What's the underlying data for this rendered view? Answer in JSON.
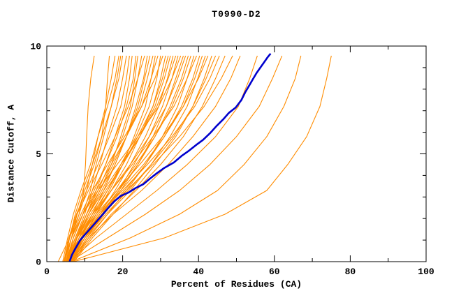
{
  "chart_data": {
    "type": "line",
    "title": "T0990-D2",
    "xlabel": "Percent of Residues (CA)",
    "ylabel": "Distance Cutoff, A",
    "xlim": [
      0,
      100
    ],
    "ylim": [
      0,
      10
    ],
    "grid": false,
    "legend": "none",
    "x_major_ticks": [
      0,
      20,
      40,
      60,
      80,
      100
    ],
    "x_minor_ticks": [
      10,
      30,
      50,
      70,
      90
    ],
    "y_major_ticks": [
      0,
      5,
      10
    ],
    "y_minor_ticks": [
      1,
      2,
      3,
      4,
      6,
      7,
      8,
      9
    ],
    "colors": {
      "model_lines": "#FF8C00",
      "highlight_line": "#0000CD",
      "axis": "#000000",
      "background": "#FFFFFF"
    },
    "series_y_levels": [
      0,
      1.1,
      2.2,
      3.3,
      4.5,
      5.8,
      7.2,
      8.5,
      9.55
    ],
    "model_series_x": [
      [
        3,
        6,
        8.5,
        9.7,
        10.2,
        10.5,
        10.9,
        11.6,
        12.5
      ],
      [
        4.5,
        6.5,
        8,
        10,
        12.5,
        14.5,
        15.5,
        16,
        16.5
      ],
      [
        5,
        6.5,
        8.5,
        10.5,
        12,
        13.5,
        15.5,
        17,
        18
      ],
      [
        4.2,
        5.5,
        7,
        9,
        11.5,
        13.5,
        16,
        18,
        19
      ],
      [
        5.5,
        7,
        9.5,
        11.5,
        13,
        15,
        17,
        18.5,
        19.5
      ],
      [
        4.8,
        6,
        7.5,
        9.5,
        12,
        14.5,
        17,
        19,
        20
      ],
      [
        5.2,
        7.5,
        10,
        12,
        14,
        16,
        18.5,
        20,
        21
      ],
      [
        4.5,
        5.8,
        7.8,
        10.5,
        13.5,
        16.5,
        19.5,
        21,
        21.8
      ],
      [
        6,
        8,
        10.5,
        13,
        15.5,
        18,
        20.5,
        21.8,
        22.5
      ],
      [
        5,
        7,
        9.5,
        12.5,
        15.5,
        18.5,
        21,
        22.8,
        23.5
      ],
      [
        6.2,
        8.5,
        11,
        14,
        17,
        19.5,
        22,
        23.2,
        24
      ],
      [
        5.4,
        7.8,
        10.5,
        13.5,
        16.5,
        20,
        22.5,
        24,
        25
      ],
      [
        4.6,
        6,
        8,
        11,
        14.5,
        18,
        21.5,
        24,
        25.8
      ],
      [
        6.5,
        9,
        12,
        15,
        18,
        21,
        23.5,
        25.5,
        26.5
      ],
      [
        5.6,
        8,
        11,
        14.5,
        18,
        21,
        24,
        25.8,
        27.2
      ],
      [
        5,
        7.5,
        10.5,
        14,
        17.5,
        21,
        24.5,
        26.5,
        28
      ],
      [
        6.8,
        9.5,
        13,
        16.5,
        20,
        23,
        26,
        27.5,
        28.6
      ],
      [
        5.2,
        7,
        9.5,
        13,
        17,
        21,
        25,
        27.5,
        29.3
      ],
      [
        6,
        9,
        12.5,
        16,
        19.5,
        23.5,
        27,
        29,
        30
      ],
      [
        4.4,
        6.5,
        9,
        12,
        16,
        20.5,
        25,
        28.5,
        30.6
      ],
      [
        6.4,
        9.5,
        13,
        17,
        21,
        24.5,
        28,
        30,
        31.3
      ],
      [
        5.8,
        8.5,
        12,
        16,
        20,
        24,
        28,
        30.5,
        32
      ],
      [
        5,
        8,
        11.5,
        15.5,
        20,
        24.5,
        28.5,
        31,
        32.6
      ],
      [
        6.6,
        10,
        14,
        18,
        22,
        26,
        29.5,
        31.8,
        33.3
      ],
      [
        5.5,
        8,
        11,
        15,
        19.5,
        24.5,
        29,
        32,
        34
      ],
      [
        6.2,
        10,
        14.5,
        19,
        23,
        27,
        30.5,
        33,
        34.6
      ],
      [
        4.7,
        6.5,
        9.5,
        13.5,
        18.5,
        24,
        29.5,
        33,
        35.3
      ],
      [
        6.8,
        10.5,
        15,
        19.5,
        24,
        28,
        31.5,
        34,
        36
      ],
      [
        5.3,
        8.5,
        12.5,
        17,
        22,
        27,
        31.5,
        34.5,
        36.6
      ],
      [
        6,
        9.5,
        14,
        19,
        24,
        28.5,
        32.5,
        35.5,
        37.3
      ],
      [
        5.7,
        9,
        13.5,
        18.5,
        23.5,
        28.5,
        33,
        36,
        38
      ],
      [
        7,
        11,
        16,
        21,
        26,
        30.5,
        34.5,
        37,
        38.8
      ],
      [
        5.1,
        8,
        12,
        17,
        22.5,
        28,
        33.5,
        37,
        39.5
      ],
      [
        6.3,
        10,
        15,
        20.5,
        26,
        31,
        35.5,
        38.5,
        40.3
      ],
      [
        5.9,
        9.5,
        14,
        19.5,
        25.5,
        31,
        36,
        39,
        41
      ],
      [
        6.6,
        10.5,
        16,
        22,
        27.5,
        32.5,
        37,
        39.8,
        41.8
      ],
      [
        5.4,
        8.5,
        13,
        18.5,
        24.5,
        30.5,
        36,
        40,
        42.5
      ],
      [
        7.2,
        12,
        17.5,
        23,
        28.5,
        34,
        38.5,
        41.5,
        43.5
      ],
      [
        6.1,
        10,
        15.5,
        21.5,
        27.5,
        33.5,
        38.5,
        42,
        44.5
      ],
      [
        5.6,
        9,
        14,
        20,
        26.5,
        33,
        39,
        43,
        45.5
      ],
      [
        6.9,
        11.5,
        17,
        23.5,
        30,
        36,
        41,
        44.5,
        47
      ],
      [
        5.2,
        9,
        14.5,
        21,
        28,
        35,
        41.5,
        46,
        49
      ],
      [
        6.4,
        11,
        17.5,
        25,
        32,
        38.5,
        44.5,
        48.5,
        51
      ],
      [
        6,
        13,
        21,
        29,
        37,
        44.5,
        50.5,
        53.5,
        55.5
      ],
      [
        6,
        16,
        26,
        35,
        43,
        50,
        56,
        59.5,
        62
      ],
      [
        6.5,
        22,
        35,
        45,
        52,
        58,
        62.5,
        65.5,
        67
      ],
      [
        7,
        31,
        47,
        58,
        63.5,
        68.5,
        72,
        73.8,
        75
      ]
    ],
    "highlight_series": [
      [
        6,
        0
      ],
      [
        6.6,
        0.3
      ],
      [
        7.5,
        0.6
      ],
      [
        8.8,
        1.0
      ],
      [
        10.3,
        1.3
      ],
      [
        11.8,
        1.6
      ],
      [
        13.3,
        1.9
      ],
      [
        14.8,
        2.2
      ],
      [
        16.2,
        2.5
      ],
      [
        17.8,
        2.8
      ],
      [
        19.5,
        3.05
      ],
      [
        21.5,
        3.2
      ],
      [
        23.3,
        3.4
      ],
      [
        25.5,
        3.6
      ],
      [
        27.2,
        3.85
      ],
      [
        29,
        4.1
      ],
      [
        31,
        4.35
      ],
      [
        33.5,
        4.6
      ],
      [
        35.5,
        4.9
      ],
      [
        37.5,
        5.15
      ],
      [
        39.3,
        5.4
      ],
      [
        41.2,
        5.65
      ],
      [
        43,
        5.95
      ],
      [
        44.8,
        6.3
      ],
      [
        46.5,
        6.6
      ],
      [
        48,
        6.9
      ],
      [
        49.8,
        7.15
      ],
      [
        51.3,
        7.5
      ],
      [
        52.3,
        7.85
      ],
      [
        53.3,
        8.15
      ],
      [
        54.3,
        8.45
      ],
      [
        55.3,
        8.75
      ],
      [
        56.3,
        9.0
      ],
      [
        57.3,
        9.25
      ],
      [
        58.3,
        9.5
      ],
      [
        59,
        9.65
      ]
    ]
  }
}
